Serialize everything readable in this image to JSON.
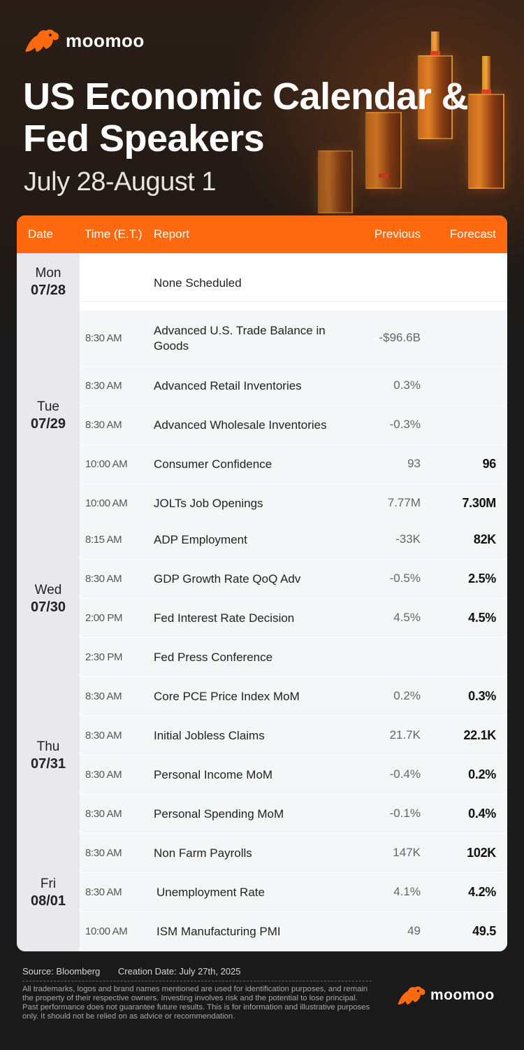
{
  "brand": {
    "name": "moomoo",
    "accent": "#ff6a10"
  },
  "title": "US Economic Calendar & Fed Speakers",
  "subtitle": "July 28-August 1",
  "table": {
    "headers": {
      "date": "Date",
      "time": "Time (E.T.)",
      "report": "Report",
      "previous": "Previous",
      "forecast": "Forecast"
    },
    "days": [
      {
        "day": "Mon",
        "date": "07/28",
        "rows": [
          {
            "time": "",
            "report": "None Scheduled",
            "previous": "",
            "forecast": ""
          }
        ]
      },
      {
        "day": "Tue",
        "date": "07/29",
        "rows": [
          {
            "time": "8:30 AM",
            "report": "Advanced U.S. Trade Balance in Goods",
            "previous": "-$96.6B",
            "forecast": ""
          },
          {
            "time": "8:30 AM",
            "report": "Advanced Retail Inventories",
            "previous": "0.3%",
            "forecast": ""
          },
          {
            "time": "8:30 AM",
            "report": "Advanced Wholesale Inventories",
            "previous": "-0.3%",
            "forecast": ""
          },
          {
            "time": "10:00 AM",
            "report": "Consumer Confidence",
            "previous": "93",
            "forecast": "96"
          },
          {
            "time": "10:00 AM",
            "report": "JOLTs Job Openings",
            "previous": "7.77M",
            "forecast": "7.30M"
          }
        ]
      },
      {
        "day": "Wed",
        "date": "07/30",
        "rows": [
          {
            "time": "8:15 AM",
            "report": "ADP Employment",
            "previous": "-33K",
            "forecast": "82K"
          },
          {
            "time": "8:30 AM",
            "report": "GDP Growth Rate QoQ Adv",
            "previous": "-0.5%",
            "forecast": "2.5%"
          },
          {
            "time": "2:00 PM",
            "report": "Fed Interest Rate Decision",
            "previous": "4.5%",
            "forecast": "4.5%"
          },
          {
            "time": "2:30 PM",
            "report": "Fed Press Conference",
            "previous": "",
            "forecast": ""
          }
        ]
      },
      {
        "day": "Thu",
        "date": "07/31",
        "rows": [
          {
            "time": "8:30 AM",
            "report": "Core PCE Price Index MoM",
            "previous": "0.2%",
            "forecast": "0.3%"
          },
          {
            "time": "8:30 AM",
            "report": "Initial Jobless Claims",
            "previous": "21.7K",
            "forecast": "22.1K"
          },
          {
            "time": "8:30 AM",
            "report": "Personal Income MoM",
            "previous": "-0.4%",
            "forecast": "0.2%"
          },
          {
            "time": "8:30 AM",
            "report": "Personal Spending MoM",
            "previous": "-0.1%",
            "forecast": "0.4%"
          }
        ]
      },
      {
        "day": "Fri",
        "date": "08/01",
        "rows": [
          {
            "time": "8:30 AM",
            "report": "Non Farm Payrolls",
            "previous": "147K",
            "forecast": "102K"
          },
          {
            "time": "8:30 AM",
            "report": "Unemployment Rate",
            "previous": "4.1%",
            "forecast": "4.2%"
          },
          {
            "time": "10:00 AM",
            "report": "ISM Manufacturing PMI",
            "previous": "49",
            "forecast": "49.5"
          }
        ]
      }
    ]
  },
  "footer": {
    "source": "Source: Bloomberg",
    "creation_date": "Creation Date: July 27th, 2025",
    "disclaimer": "All trademarks, logos and brand names mentioned are used for identification purposes, and remain the property of their respective owners. Investing involves risk and the potential to lose principal. Past performance does not guarantee future results. This is for information and illustrative purposes only. It should not be relied on as advice or recommendation."
  }
}
